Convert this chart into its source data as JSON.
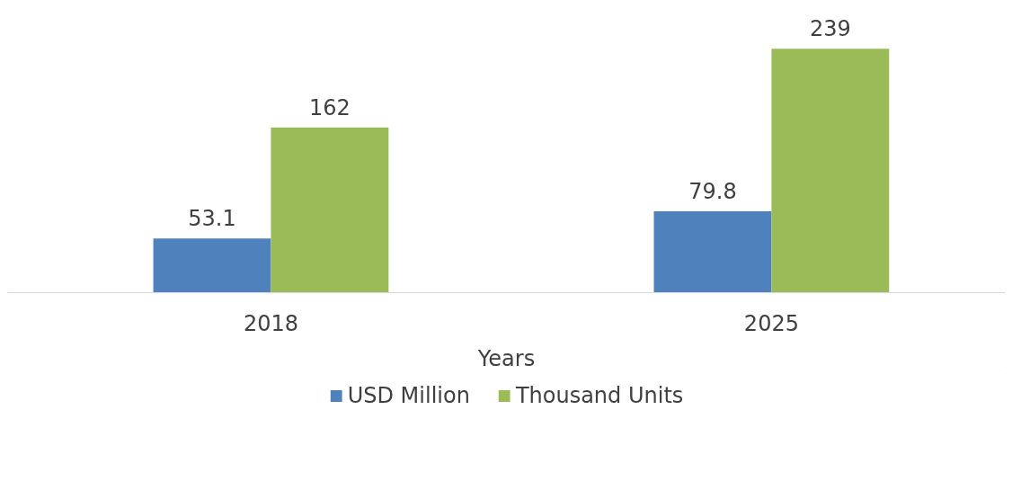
{
  "chart_data": {
    "type": "bar",
    "xlabel": "Years",
    "categories": [
      "2018",
      "2025"
    ],
    "series": [
      {
        "name": "USD Million",
        "color": "#4f81bd",
        "values": [
          53.1,
          79.8
        ]
      },
      {
        "name": "Thousand Units",
        "color": "#9bbb59",
        "values": [
          162,
          239
        ]
      }
    ],
    "data_labels": true,
    "legend": "bottom"
  }
}
